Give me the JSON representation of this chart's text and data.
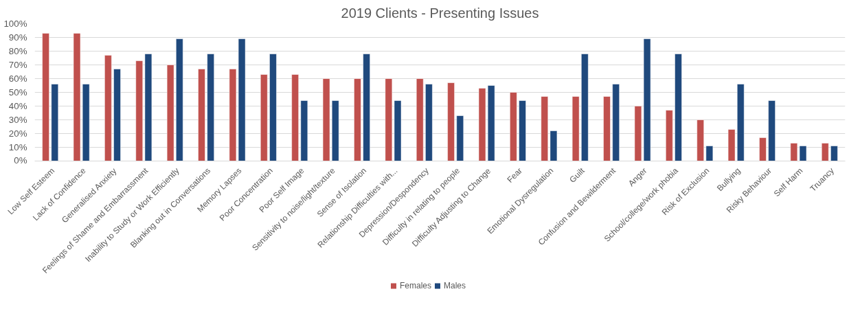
{
  "chart_data": {
    "type": "bar",
    "title": "2019 Clients - Presenting Issues",
    "categories": [
      "Low Self Esteem",
      "Lack of Confidence",
      "Generalised Anxiety",
      "Feelings of Shame and Embarrassment",
      "Inability to Study or Work Efficiently",
      "Blanking out in Conversations",
      "Memory Lapses",
      "Poor Concentration",
      "Poor Self Image",
      "Sensitivity to noise/light/texture",
      "Sense of Isolation",
      "Relationship Difficulties with...",
      "Depression/Despondency",
      "Difficulty in relating to people",
      "Difficulty Adjusting to Change",
      "Fear",
      "Emotional Dysregulation",
      "Guilt",
      "Confusion and Bewilderment",
      "Anger",
      "School/college/work phobia",
      "Risk of Exclusion",
      "Bullying",
      "Risky Behaviour",
      "Self Harm",
      "Truancy"
    ],
    "series": [
      {
        "name": "Females",
        "color": "#c0504d",
        "values": [
          93,
          93,
          77,
          73,
          70,
          67,
          67,
          63,
          63,
          60,
          60,
          60,
          60,
          57,
          53,
          50,
          47,
          47,
          47,
          40,
          37,
          30,
          23,
          17,
          13,
          13
        ]
      },
      {
        "name": "Males",
        "color": "#1f497d",
        "values": [
          56,
          56,
          67,
          78,
          89,
          78,
          89,
          78,
          44,
          44,
          78,
          44,
          56,
          33,
          55,
          44,
          22,
          78,
          56,
          89,
          78,
          11,
          56,
          44,
          11,
          11
        ]
      }
    ],
    "ylim": [
      0,
      100
    ],
    "yticks": [
      {
        "value": 0,
        "label": "0%"
      },
      {
        "value": 10,
        "label": "10%"
      },
      {
        "value": 20,
        "label": "20%"
      },
      {
        "value": 30,
        "label": "30%"
      },
      {
        "value": 40,
        "label": "40%"
      },
      {
        "value": 50,
        "label": "50%"
      },
      {
        "value": 60,
        "label": "60%"
      },
      {
        "value": 70,
        "label": "70%"
      },
      {
        "value": 80,
        "label": "80%"
      },
      {
        "value": 90,
        "label": "90%"
      },
      {
        "value": 100,
        "label": "100%"
      }
    ],
    "grid": "y",
    "legend": "bottom"
  }
}
